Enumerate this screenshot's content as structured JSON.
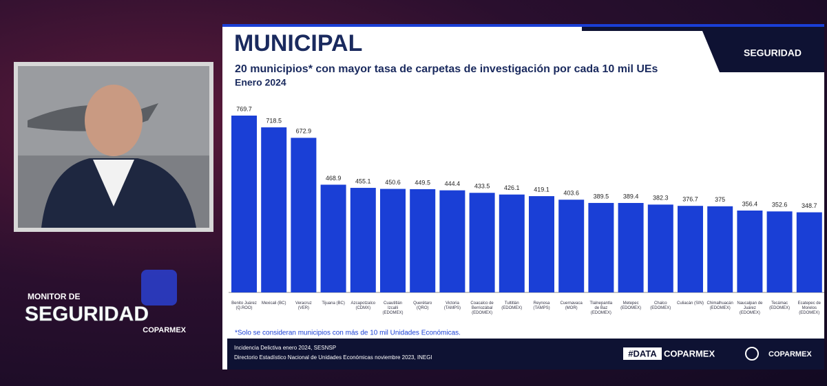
{
  "chart_data": {
    "type": "bar",
    "title": "MUNICIPAL",
    "subtitle": "20 municipios* con mayor tasa de carpetas de investigación por cada 10 mil UEs",
    "period": "Enero 2024",
    "categories": [
      "Benito Juárez (Q.ROO)",
      "Mexicali (BC)",
      "Veracruz (VER)",
      "Tijuana (BC)",
      "Azcapotzalco (CDMX)",
      "Cuautitlán Izcalli (EDOMEX)",
      "Querétaro (QRO)",
      "Victoria (TAMPS)",
      "Coacalco de Berriozábal (EDOMEX)",
      "Tultitlán (EDOMEX)",
      "Reynosa (TAMPS)",
      "Cuernavaca (MOR)",
      "Tlalnepantla de Baz (EDOMEX)",
      "Metepec (EDOMEX)",
      "Chalco (EDOMEX)",
      "Culiacán (SIN)",
      "Chimalhuacán (EDOMEX)",
      "Naucalpan de Juárez (EDOMEX)",
      "Tecámac (EDOMEX)",
      "Ecatepec de Morelos (EDOMEX)"
    ],
    "values": [
      769.7,
      718.5,
      672.9,
      468.9,
      455.1,
      450.6,
      449.5,
      444.4,
      433.5,
      426.1,
      419.1,
      403.6,
      389.5,
      389.4,
      382.3,
      376.7,
      375,
      356.4,
      352.6,
      348.7
    ],
    "color": "#1a3fd6",
    "note": "*Solo se consideran municipios con más de 10 mil Unidades Económicas.",
    "sources": [
      "Incidencia Delictiva enero 2024, SESNSP",
      "Directorio Estadístico Nacional de Unidades Económicas noviembre 2023, INEGI"
    ]
  },
  "branding": {
    "data_tag": "#DATA",
    "data_brand": "COPARMEX",
    "footer_brand": "COPARMEX",
    "logo_small": "SEGURIDAD",
    "monitor_label": "MONITOR DE",
    "monitor_title": "SEGURIDAD",
    "monitor_brand": "COPARMEX"
  }
}
